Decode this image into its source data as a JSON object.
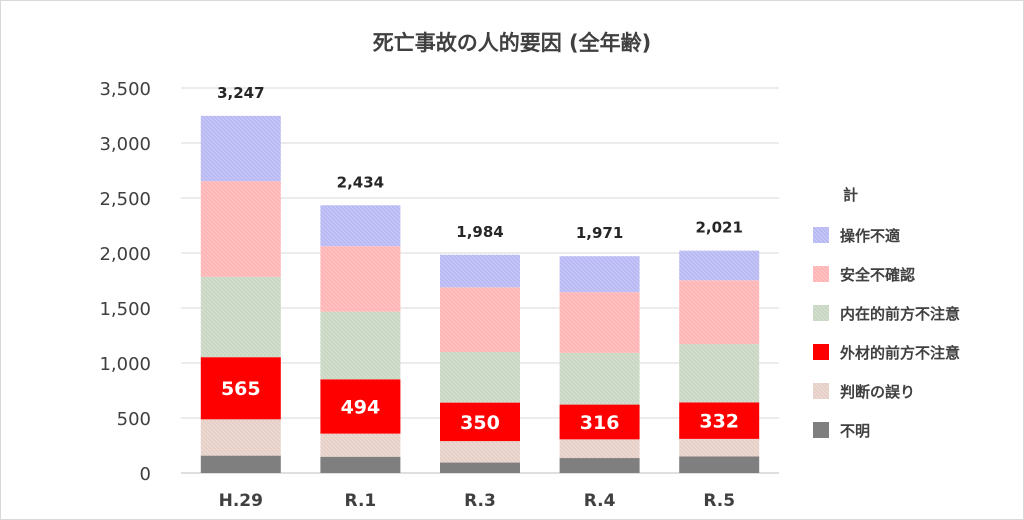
{
  "chart_data": {
    "type": "bar",
    "stacked": true,
    "title": "死亡事故の人的要因 (全年齢)",
    "categories": [
      "H.29",
      "R.1",
      "R.3",
      "R.4",
      "R.5"
    ],
    "totals": [
      3247,
      2434,
      1984,
      1971,
      2021
    ],
    "total_labels": [
      "3,247",
      "2,434",
      "1,984",
      "1,971",
      "2,021"
    ],
    "series": [
      {
        "name": "不明",
        "values": [
          158,
          148,
          95,
          136,
          150
        ],
        "color": "#7f7f7f",
        "pattern": "solid"
      },
      {
        "name": "判断の誤り",
        "values": [
          330,
          210,
          195,
          170,
          160
        ],
        "color": "#e6cfc7",
        "pattern": "hatch"
      },
      {
        "name": "外材的前方不注意",
        "values": [
          565,
          494,
          350,
          316,
          332
        ],
        "color": "#ff0000",
        "pattern": "solid",
        "show_values": true
      },
      {
        "name": "内在的前方不注意",
        "values": [
          730,
          615,
          460,
          470,
          530
        ],
        "color": "#c8d6c2",
        "pattern": "hatch"
      },
      {
        "name": "安全不確認",
        "values": [
          870,
          595,
          588,
          552,
          580
        ],
        "color": "#ffb3b3",
        "pattern": "hatch"
      },
      {
        "name": "操作不適",
        "values": [
          594,
          372,
          296,
          327,
          269
        ],
        "color": "#b8b8f4",
        "pattern": "hatch"
      }
    ],
    "legend_title": "計",
    "legend_position": "right",
    "ylim": [
      0,
      3500
    ],
    "yticks": [
      0,
      500,
      1000,
      1500,
      2000,
      2500,
      3000,
      3500
    ],
    "ytick_labels": [
      "0",
      "500",
      "1,000",
      "1,500",
      "2,000",
      "2,500",
      "3,000",
      "3,500"
    ],
    "grid": true,
    "xlabel": "",
    "ylabel": ""
  }
}
